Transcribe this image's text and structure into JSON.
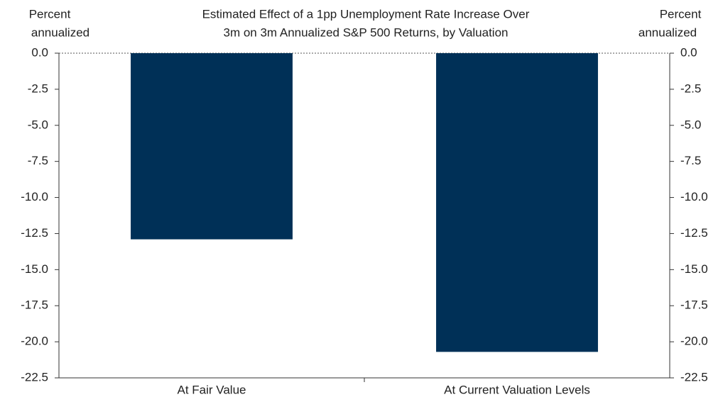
{
  "chart_data": {
    "type": "bar",
    "title": [
      "Estimated Effect of a 1pp Unemployment Rate Increase Over",
      "3m on 3m Annualized S&P 500 Returns, by Valuation"
    ],
    "y_label": [
      "Percent",
      "annualized"
    ],
    "y2_label": [
      "Percent",
      "annualized"
    ],
    "categories": [
      "At Fair Value",
      "At Current Valuation Levels"
    ],
    "values": [
      -12.9,
      -20.7
    ],
    "color": "#003057",
    "ylim": [
      -22.5,
      0
    ],
    "yticks": [
      {
        "value": 0,
        "label": "0.0"
      },
      -2.5,
      {
        "value": -5,
        "label": "-5.0"
      },
      -7.5,
      {
        "value": -10,
        "label": "-10.0"
      },
      -12.5,
      {
        "value": -15,
        "label": "-15.0"
      },
      -17.5,
      {
        "value": -20,
        "label": "-20.0"
      },
      -22.5
    ],
    "y2lim": [
      -22.5,
      0
    ],
    "y2ticks": [
      {
        "value": 0,
        "label": "0.0"
      },
      -2.5,
      {
        "value": -5,
        "label": "-5.0"
      },
      -7.5,
      {
        "value": -10,
        "label": "-10.0"
      },
      -12.5,
      {
        "value": -15,
        "label": "-15.0"
      },
      -17.5,
      {
        "value": -20,
        "label": "-20.0"
      },
      -22.5
    ]
  }
}
